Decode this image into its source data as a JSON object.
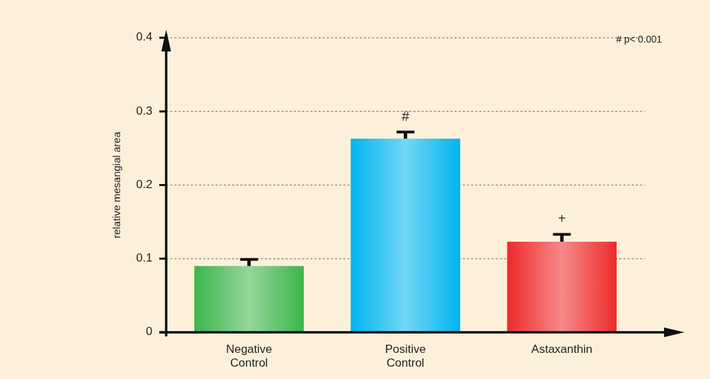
{
  "chart_data": {
    "type": "bar",
    "ylabel": "relative mesangial area",
    "categories": [
      "Negative\nControl",
      "Positive\nControl",
      "Astaxanthin"
    ],
    "values": [
      0.09,
      0.263,
      0.123
    ],
    "colors": [
      "#3cb54a",
      "#00b4ef",
      "#ee2a2a"
    ],
    "errors": [
      [
        0.09,
        0.099
      ],
      [
        0.263,
        0.272
      ],
      [
        0.123,
        0.133
      ]
    ],
    "ylim": [
      0,
      0.4
    ],
    "yticks": [
      {
        "value": 0,
        "label": "0"
      },
      0.1,
      0.2,
      0.3,
      0.4
    ],
    "grid": "y",
    "annotations": [
      "# p< 0.001",
      "#",
      "+"
    ]
  }
}
